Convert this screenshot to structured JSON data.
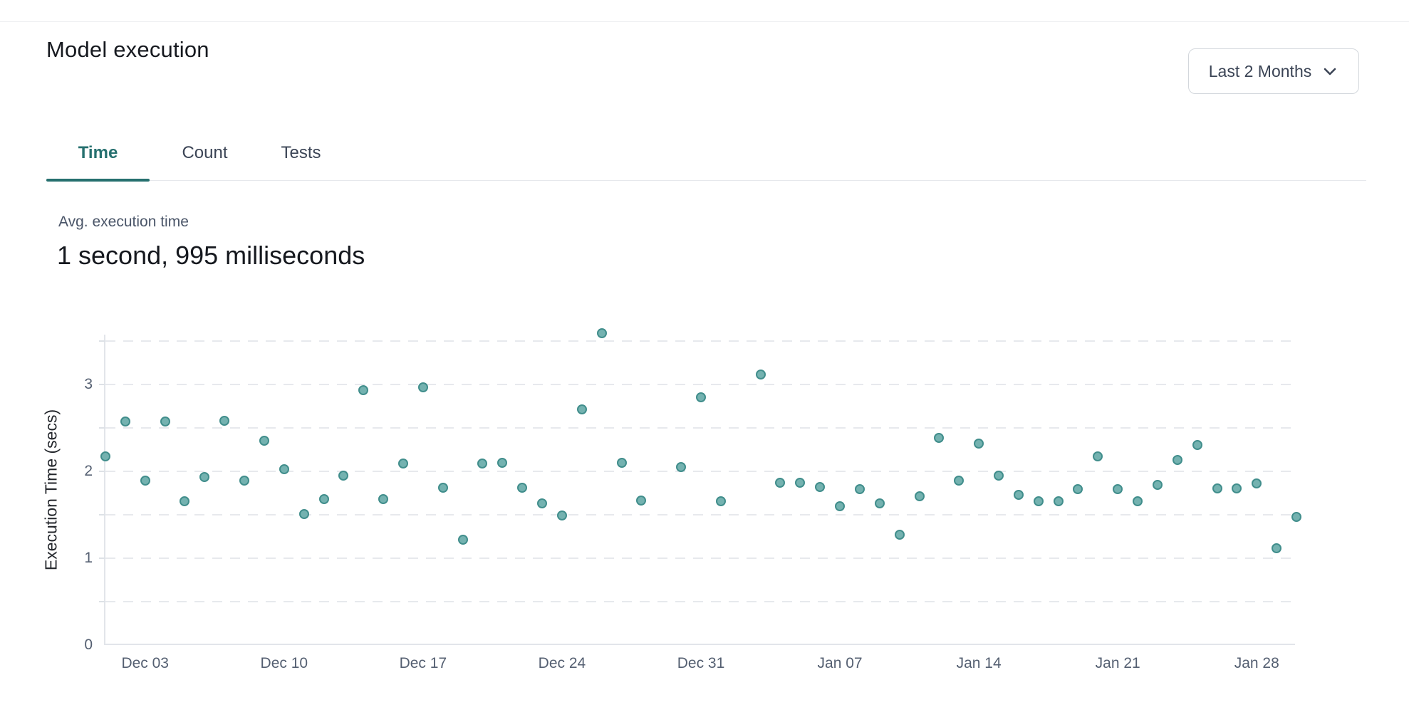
{
  "header": {
    "title": "Model execution",
    "range_selector": {
      "label": "Last 2 Months"
    }
  },
  "tabs": [
    {
      "label": "Time",
      "active": true
    },
    {
      "label": "Count",
      "active": false
    },
    {
      "label": "Tests",
      "active": false
    }
  ],
  "metric": {
    "label": "Avg. execution time",
    "value": "1 second, 995 milliseconds"
  },
  "colors": {
    "accent_teal": "#26706f",
    "dot_fill": "#74b2b0",
    "dot_stroke": "#418e8c",
    "grid": "#e7e9ed",
    "axis": "#e2e5ea",
    "tick_text": "#545f71"
  },
  "chart_data": {
    "type": "scatter",
    "title": "",
    "xlabel": "",
    "ylabel": "Execution Time (secs)",
    "x_day0_date": "Dec 01",
    "x_domain_days": [
      0,
      60
    ],
    "ylim": [
      0,
      3.57
    ],
    "grid_step": 0.5,
    "grid": "dashed horizontal",
    "legend_position": "none",
    "x_ticks": [
      {
        "label": "Dec 03",
        "day": 2
      },
      {
        "label": "Dec 10",
        "day": 9
      },
      {
        "label": "Dec 17",
        "day": 16
      },
      {
        "label": "Dec 24",
        "day": 23
      },
      {
        "label": "Dec 31",
        "day": 30
      },
      {
        "label": "Jan 07",
        "day": 37
      },
      {
        "label": "Jan 14",
        "day": 44
      },
      {
        "label": "Jan 21",
        "day": 51
      },
      {
        "label": "Jan 28",
        "day": 58
      }
    ],
    "y_ticks": [
      {
        "label": "0",
        "value": 0
      },
      {
        "label": "1",
        "value": 1
      },
      {
        "label": "2",
        "value": 2
      },
      {
        "label": "3",
        "value": 3
      }
    ],
    "points": [
      {
        "day": 0,
        "secs": 2.17
      },
      {
        "day": 1,
        "secs": 2.57
      },
      {
        "day": 2,
        "secs": 1.89
      },
      {
        "day": 3,
        "secs": 2.57
      },
      {
        "day": 4,
        "secs": 1.65
      },
      {
        "day": 5,
        "secs": 1.93
      },
      {
        "day": 6,
        "secs": 2.58
      },
      {
        "day": 7,
        "secs": 1.89
      },
      {
        "day": 8,
        "secs": 2.35
      },
      {
        "day": 9,
        "secs": 2.02
      },
      {
        "day": 10,
        "secs": 1.51
      },
      {
        "day": 11,
        "secs": 1.68
      },
      {
        "day": 12,
        "secs": 1.95
      },
      {
        "day": 13,
        "secs": 2.93
      },
      {
        "day": 14,
        "secs": 1.68
      },
      {
        "day": 15,
        "secs": 2.09
      },
      {
        "day": 16,
        "secs": 2.96
      },
      {
        "day": 17,
        "secs": 1.81
      },
      {
        "day": 18,
        "secs": 1.21
      },
      {
        "day": 19,
        "secs": 2.09
      },
      {
        "day": 20,
        "secs": 2.1
      },
      {
        "day": 21,
        "secs": 1.81
      },
      {
        "day": 22,
        "secs": 1.63
      },
      {
        "day": 23,
        "secs": 1.49
      },
      {
        "day": 24,
        "secs": 2.71
      },
      {
        "day": 25,
        "secs": 3.59
      },
      {
        "day": 26,
        "secs": 2.1
      },
      {
        "day": 27,
        "secs": 1.66
      },
      {
        "day": 29,
        "secs": 2.05
      },
      {
        "day": 30,
        "secs": 2.85
      },
      {
        "day": 31,
        "secs": 1.65
      },
      {
        "day": 33,
        "secs": 3.11
      },
      {
        "day": 34,
        "secs": 1.87
      },
      {
        "day": 35,
        "secs": 1.87
      },
      {
        "day": 36,
        "secs": 1.82
      },
      {
        "day": 37,
        "secs": 1.6
      },
      {
        "day": 38,
        "secs": 1.79
      },
      {
        "day": 39,
        "secs": 1.63
      },
      {
        "day": 40,
        "secs": 1.27
      },
      {
        "day": 41,
        "secs": 1.71
      },
      {
        "day": 42,
        "secs": 2.38
      },
      {
        "day": 43,
        "secs": 1.89
      },
      {
        "day": 44,
        "secs": 2.32
      },
      {
        "day": 45,
        "secs": 1.95
      },
      {
        "day": 46,
        "secs": 1.73
      },
      {
        "day": 47,
        "secs": 1.65
      },
      {
        "day": 48,
        "secs": 1.65
      },
      {
        "day": 49,
        "secs": 1.79
      },
      {
        "day": 50,
        "secs": 2.17
      },
      {
        "day": 51,
        "secs": 1.79
      },
      {
        "day": 52,
        "secs": 1.65
      },
      {
        "day": 53,
        "secs": 1.84
      },
      {
        "day": 54,
        "secs": 2.13
      },
      {
        "day": 55,
        "secs": 2.3
      },
      {
        "day": 56,
        "secs": 1.8
      },
      {
        "day": 57,
        "secs": 1.8
      },
      {
        "day": 58,
        "secs": 1.86
      },
      {
        "day": 59,
        "secs": 1.11
      },
      {
        "day": 60,
        "secs": 1.47
      }
    ]
  }
}
